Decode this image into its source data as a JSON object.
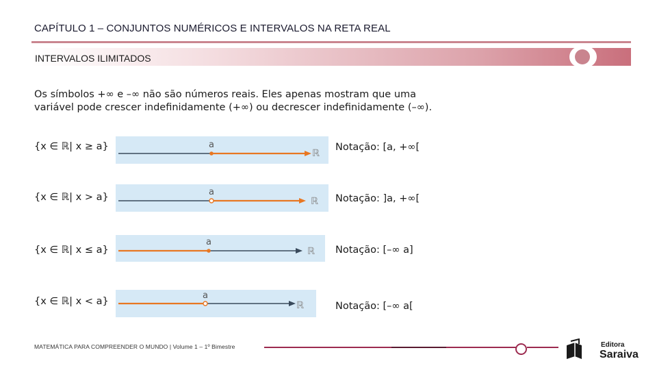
{
  "header": {
    "chapter_title": "CAPÍTULO  1 – CONJUNTOS NUMÉRICOS E INTERVALOS NA RETA REAL",
    "section_title": "INTERVALOS ILIMITADOS"
  },
  "intro": {
    "line1": "Os símbolos +∞ e –∞ não são números reais. Eles apenas mostram que uma",
    "line2": "variável pode crescer indefinidamente (+∞) ou decrescer indefinidamente (–∞)."
  },
  "intervals": [
    {
      "set": "{x ∈ ℝ| x ≥ a}",
      "notation": "Notação: [a, +∞[",
      "point_label": "a",
      "axis_label": "ℝ",
      "endpoint": "closed",
      "direction": "right"
    },
    {
      "set": "{x ∈ ℝ| x > a}",
      "notation": "Notação: ]a, +∞[",
      "point_label": "a",
      "axis_label": "ℝ",
      "endpoint": "open",
      "direction": "right"
    },
    {
      "set": "{x ∈ ℝ| x ≤ a}",
      "notation": "Notação: [–∞ a]",
      "point_label": "a",
      "axis_label": "ℝ",
      "endpoint": "closed",
      "direction": "left"
    },
    {
      "set": "{x ∈ ℝ| x < a}",
      "notation": "Notação: [–∞ a[",
      "point_label": "a",
      "axis_label": "ℝ",
      "endpoint": "open",
      "direction": "left"
    }
  ],
  "footer": {
    "text": "MATEMÁTICA PARA COMPREENDER O MUNDO | Volume 1 – 1º Bimestre",
    "logo_line1": "Editora",
    "logo_line2": "Saraiva"
  },
  "colors": {
    "accent": "#9c2a4f",
    "band": "#c96f7c",
    "highlight_line": "#e87722",
    "base_line": "#3a4a5c",
    "line_box": "#d6e9f6"
  }
}
